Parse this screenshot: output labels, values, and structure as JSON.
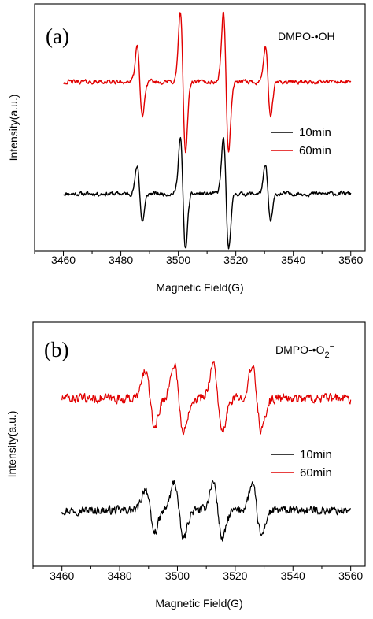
{
  "chart_data": [
    {
      "type": "line",
      "panel_label": "(a)",
      "annotation": "DMPO-•OH",
      "xlabel": "Magnetic Field(G)",
      "ylabel": "Intensity(a.u.)",
      "xlim": [
        3450,
        3565
      ],
      "x_ticks": [
        3460,
        3480,
        3500,
        3520,
        3540,
        3560
      ],
      "legend": "right-middle",
      "grid": false,
      "y_ticks_shown": false,
      "x_range": [
        3460,
        3560
      ],
      "peak_centers": [
        3486.6,
        3501.6,
        3516.6,
        3531.2
      ],
      "series": [
        {
          "name": "10min",
          "color": "#000000",
          "baseline": 0,
          "amplitudes": [
            0.4,
            0.8,
            0.8,
            0.4
          ],
          "noise": 0.03
        },
        {
          "name": "60min",
          "color": "#e10000",
          "baseline": 1.6,
          "amplitudes": [
            0.5,
            1.0,
            1.0,
            0.5
          ],
          "noise": 0.03
        }
      ]
    },
    {
      "type": "line",
      "panel_label": "(b)",
      "annotation": "DMPO-•O2−",
      "xlabel": "Magnetic Field(G)",
      "ylabel": "Intensity(a.u.)",
      "xlim": [
        3450,
        3565
      ],
      "x_ticks": [
        3460,
        3480,
        3500,
        3520,
        3540,
        3560
      ],
      "legend": "right-middle",
      "grid": false,
      "y_ticks_shown": false,
      "x_range": [
        3460,
        3560
      ],
      "peak_centers": [
        3490.5,
        3500.5,
        3514.0,
        3527.5
      ],
      "series": [
        {
          "name": "10min",
          "color": "#000000",
          "baseline": 0,
          "amplitudes": [
            0.35,
            0.45,
            0.45,
            0.4
          ],
          "noise": 0.05
        },
        {
          "name": "60min",
          "color": "#e10000",
          "baseline": 1.6,
          "amplitudes": [
            0.45,
            0.55,
            0.55,
            0.5
          ],
          "noise": 0.055
        }
      ]
    }
  ]
}
